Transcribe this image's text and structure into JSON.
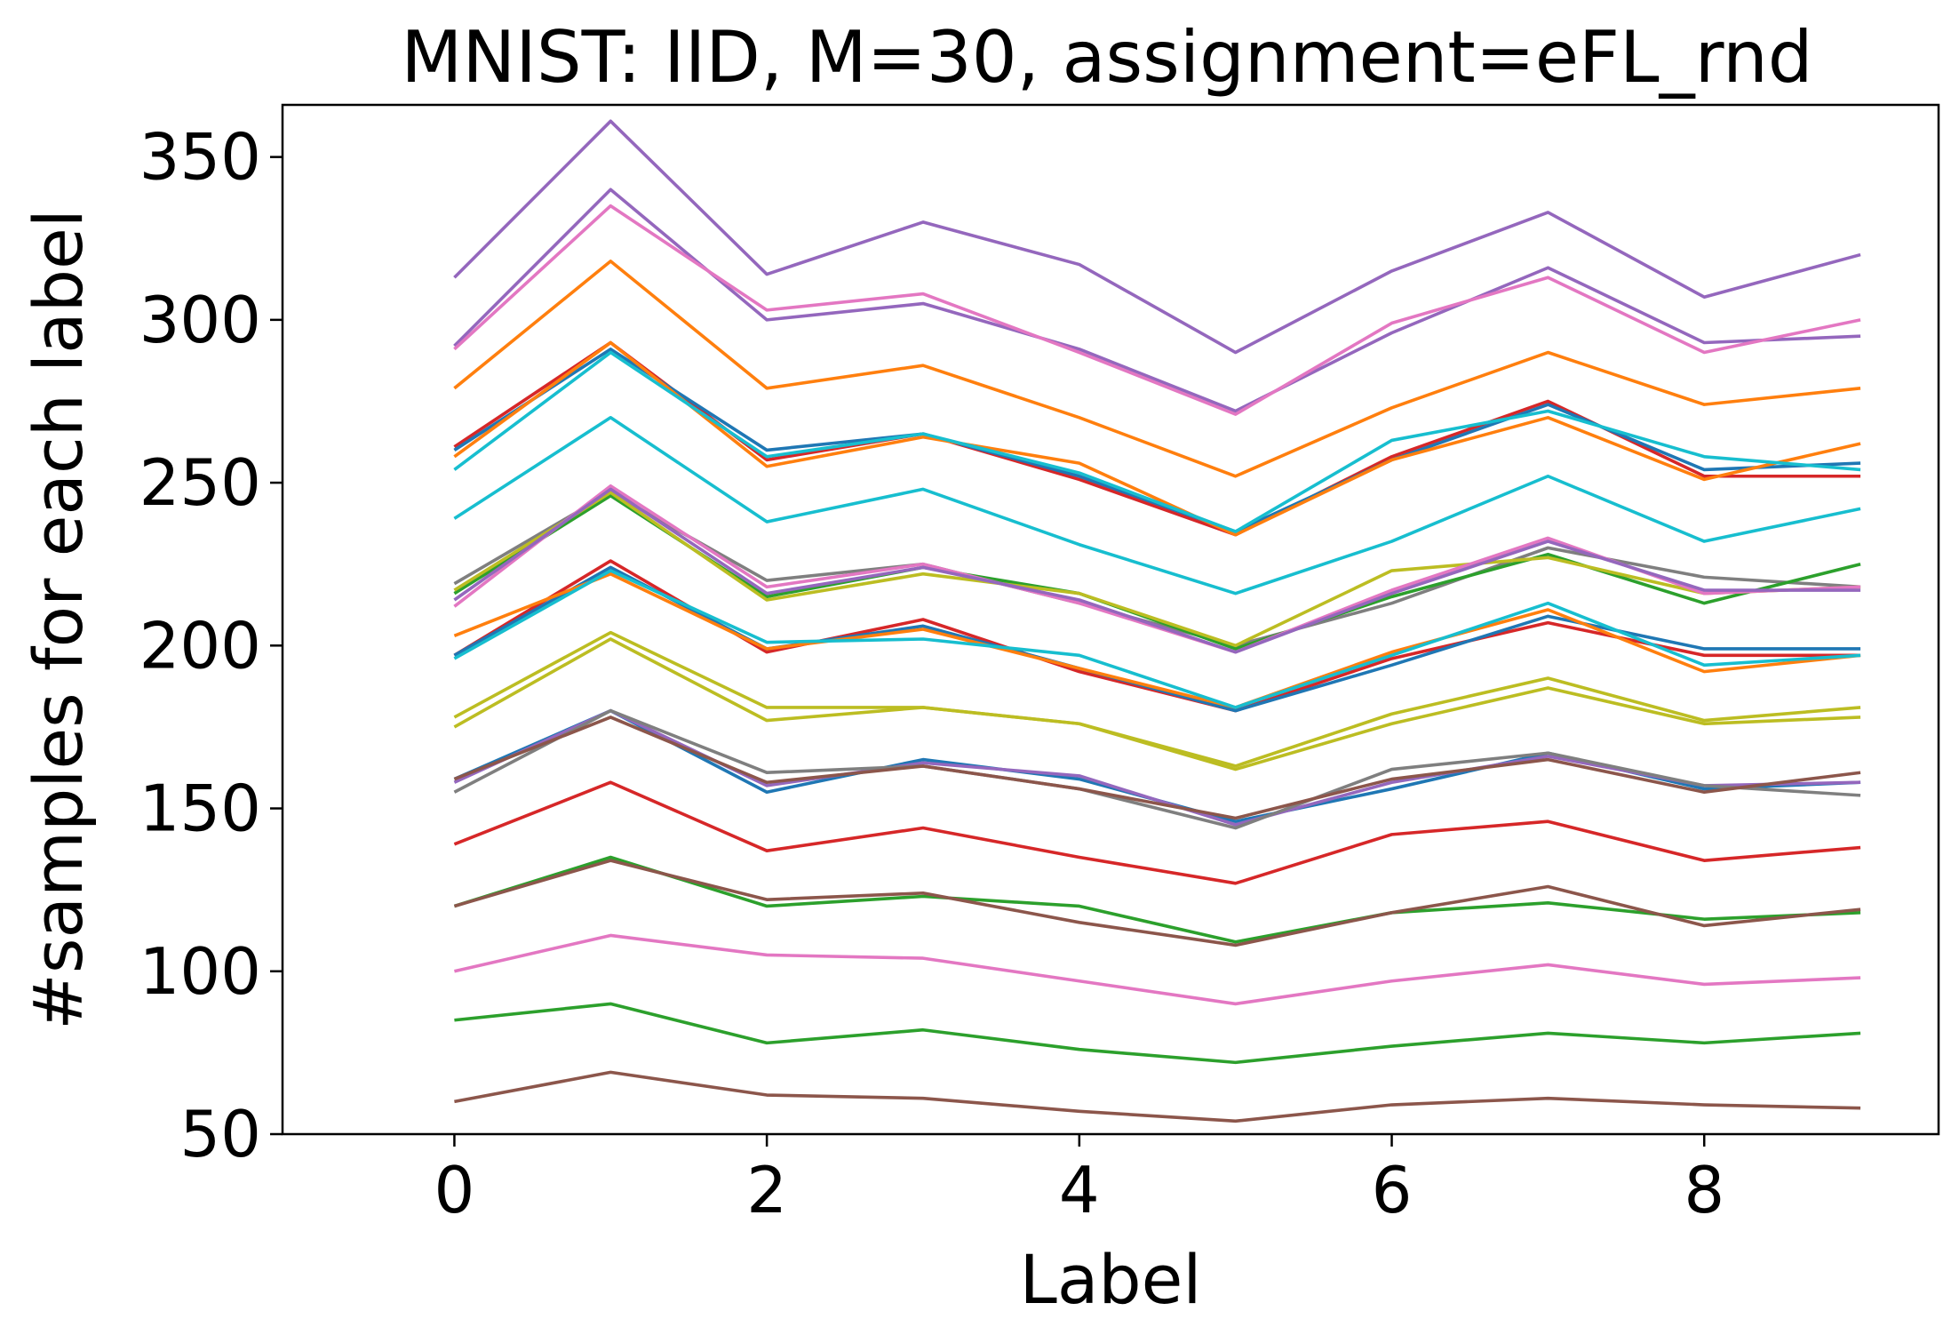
{
  "chart_data": {
    "type": "line",
    "title": "MNIST: IID, M=30, assignment=eFL_rnd",
    "xlabel": "Label",
    "ylabel": "#samples for each label",
    "x": [
      0,
      1,
      2,
      3,
      4,
      5,
      6,
      7,
      8,
      9
    ],
    "xlim": [
      -1.1,
      9.5
    ],
    "ylim": [
      50,
      366
    ],
    "xticks": [
      "0",
      "2",
      "4",
      "6",
      "8"
    ],
    "yticks": [
      "50",
      "100",
      "150",
      "200",
      "250",
      "300",
      "350"
    ],
    "grid": false,
    "legend": "none",
    "series": [
      {
        "color": "#9467bd",
        "values": [
          313,
          361,
          314,
          330,
          317,
          290,
          315,
          333,
          307,
          320
        ]
      },
      {
        "color": "#9467bd",
        "values": [
          292,
          340,
          300,
          305,
          291,
          272,
          296,
          316,
          293,
          295
        ]
      },
      {
        "color": "#e377c2",
        "values": [
          291,
          335,
          303,
          308,
          290,
          271,
          299,
          313,
          290,
          300
        ]
      },
      {
        "color": "#ff7f0e",
        "values": [
          279,
          318,
          279,
          286,
          270,
          252,
          273,
          290,
          274,
          279
        ]
      },
      {
        "color": "#d62728",
        "values": [
          261,
          293,
          257,
          265,
          251,
          234,
          258,
          275,
          252,
          252
        ]
      },
      {
        "color": "#1f77b4",
        "values": [
          260,
          291,
          260,
          265,
          252,
          235,
          257,
          274,
          254,
          256
        ]
      },
      {
        "color": "#ff7f0e",
        "values": [
          258,
          293,
          255,
          264,
          256,
          234,
          257,
          270,
          251,
          262
        ]
      },
      {
        "color": "#17becf",
        "values": [
          254,
          290,
          258,
          265,
          253,
          235,
          263,
          272,
          258,
          254
        ]
      },
      {
        "color": "#17becf",
        "values": [
          239,
          270,
          238,
          248,
          231,
          216,
          232,
          252,
          232,
          242
        ]
      },
      {
        "color": "#7f7f7f",
        "values": [
          219,
          247,
          220,
          225,
          213,
          200,
          213,
          230,
          221,
          218
        ]
      },
      {
        "color": "#2ca02c",
        "values": [
          216,
          246,
          215,
          224,
          216,
          199,
          215,
          228,
          213,
          225
        ]
      },
      {
        "color": "#bcbd22",
        "values": [
          217,
          247,
          214,
          222,
          216,
          200,
          223,
          227,
          216,
          218
        ]
      },
      {
        "color": "#e377c2",
        "values": [
          212,
          249,
          218,
          225,
          213,
          198,
          217,
          233,
          216,
          218
        ]
      },
      {
        "color": "#9467bd",
        "values": [
          214,
          248,
          216,
          224,
          214,
          198,
          216,
          232,
          217,
          217
        ]
      },
      {
        "color": "#d62728",
        "values": [
          197,
          226,
          198,
          208,
          192,
          180,
          196,
          207,
          197,
          197
        ]
      },
      {
        "color": "#1f77b4",
        "values": [
          197,
          224,
          199,
          206,
          193,
          180,
          194,
          209,
          199,
          199
        ]
      },
      {
        "color": "#ff7f0e",
        "values": [
          203,
          222,
          199,
          205,
          193,
          181,
          198,
          211,
          192,
          197
        ]
      },
      {
        "color": "#17becf",
        "values": [
          196,
          223,
          201,
          202,
          197,
          181,
          197,
          213,
          194,
          197
        ]
      },
      {
        "color": "#bcbd22",
        "values": [
          178,
          204,
          181,
          181,
          176,
          163,
          179,
          190,
          177,
          181
        ]
      },
      {
        "color": "#bcbd22",
        "values": [
          175,
          202,
          177,
          181,
          176,
          162,
          176,
          187,
          176,
          178
        ]
      },
      {
        "color": "#1f77b4",
        "values": [
          159,
          180,
          155,
          165,
          159,
          146,
          156,
          167,
          156,
          158
        ]
      },
      {
        "color": "#9467bd",
        "values": [
          158,
          180,
          157,
          164,
          160,
          145,
          158,
          166,
          157,
          158
        ]
      },
      {
        "color": "#7f7f7f",
        "values": [
          155,
          180,
          161,
          163,
          156,
          144,
          162,
          167,
          157,
          154
        ]
      },
      {
        "color": "#8c564b",
        "values": [
          159,
          178,
          158,
          163,
          156,
          147,
          159,
          165,
          155,
          161
        ]
      },
      {
        "color": "#d62728",
        "values": [
          139,
          158,
          137,
          144,
          135,
          127,
          142,
          146,
          134,
          138
        ]
      },
      {
        "color": "#2ca02c",
        "values": [
          120,
          135,
          120,
          123,
          120,
          109,
          118,
          121,
          116,
          118
        ]
      },
      {
        "color": "#8c564b",
        "values": [
          120,
          134,
          122,
          124,
          115,
          108,
          118,
          126,
          114,
          119
        ]
      },
      {
        "color": "#e377c2",
        "values": [
          100,
          111,
          105,
          104,
          97,
          90,
          97,
          102,
          96,
          98
        ]
      },
      {
        "color": "#2ca02c",
        "values": [
          85,
          90,
          78,
          82,
          76,
          72,
          77,
          81,
          78,
          81
        ]
      },
      {
        "color": "#8c564b",
        "values": [
          60,
          69,
          62,
          61,
          57,
          54,
          59,
          61,
          59,
          58
        ]
      }
    ]
  }
}
